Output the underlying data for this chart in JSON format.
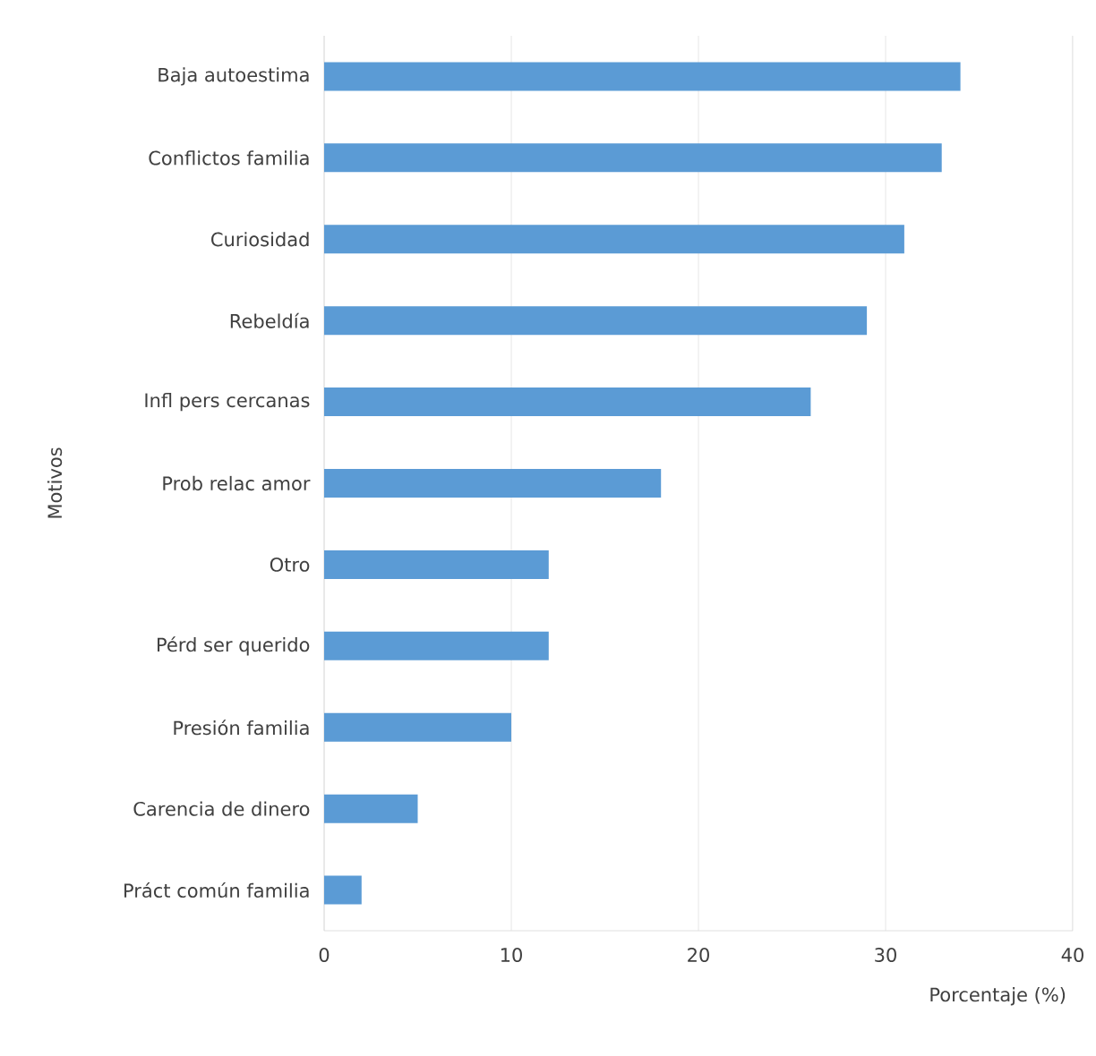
{
  "chart_data": {
    "type": "bar",
    "orientation": "horizontal",
    "xlabel": "Porcentaje (%)",
    "ylabel": "Motivos",
    "categories": [
      "Baja autoestima",
      "Conflictos familia",
      "Curiosidad",
      "Rebeldía",
      "Infl pers cercanas",
      "Prob relac amor",
      "Otro",
      "Pérd ser querido",
      "Presión familia",
      "Carencia de dinero",
      "Práct común familia"
    ],
    "values": [
      34,
      33,
      31,
      29,
      26,
      18,
      12,
      12,
      10,
      5,
      2
    ],
    "color": "#5b9bd5",
    "xlim": [
      0,
      40
    ],
    "xticks": [
      0,
      10,
      20,
      30,
      40
    ],
    "grid": "x"
  }
}
